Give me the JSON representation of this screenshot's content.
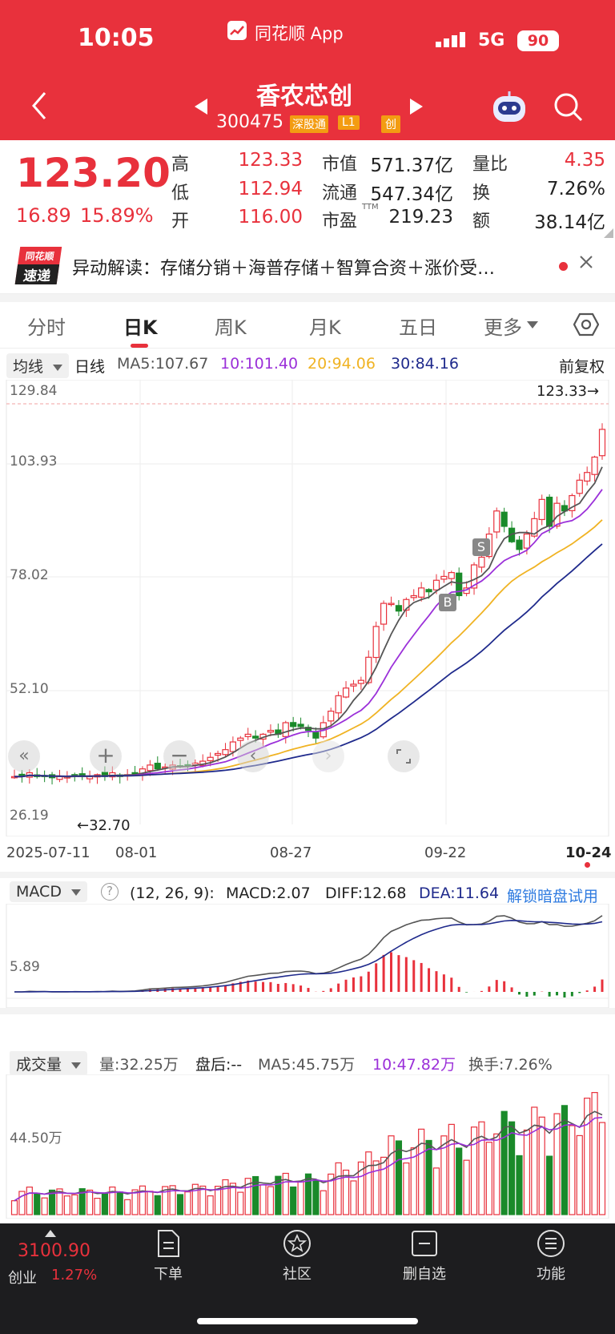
{
  "status_bar": {
    "time": "10:05",
    "app_name": "同花顺 App",
    "network": "5G",
    "battery": "90"
  },
  "header": {
    "stock_name": "香农芯创",
    "stock_code": "300475",
    "badges": [
      "深股通",
      "L1",
      "创"
    ]
  },
  "quote": {
    "price": "123.20",
    "change": "16.89",
    "change_pct": "15.89%",
    "high_label": "高",
    "high": "123.33",
    "low_label": "低",
    "low": "112.94",
    "open_label": "开",
    "open": "116.00",
    "mktcap_label": "市值",
    "mktcap": "571.37亿",
    "float_label": "流通",
    "float": "547.34亿",
    "pe_label": "市盈",
    "pe_sup": "TTM",
    "pe": "219.23",
    "volratio_label": "量比",
    "volratio": "4.35",
    "turnover_label": "换",
    "turnover": "7.26%",
    "amount_label": "额",
    "amount": "38.14亿"
  },
  "news": {
    "logo_top": "同花顺",
    "logo_bottom": "速递",
    "text": "异动解读：存储分销＋海普存储＋智算合资＋涨价受…"
  },
  "tabs": [
    "分时",
    "日K",
    "周K",
    "月K",
    "五日",
    "更多"
  ],
  "kline": {
    "indicator": "均线",
    "period": "日线",
    "ma5": "MA5:107.67",
    "ma10": "10:101.40",
    "ma20": "20:94.06",
    "ma30": "30:84.16",
    "adjust": "前复权",
    "ylabels": [
      "129.84",
      "103.93",
      "78.02",
      "52.10",
      "26.19"
    ],
    "high_marker": "123.33→",
    "low_marker": "←32.70",
    "marker_s": "S",
    "marker_b": "B",
    "dates": [
      "2025-07-11",
      "08-01",
      "08-27",
      "09-22",
      "10-24"
    ]
  },
  "macd": {
    "name": "MACD",
    "params": "(12, 26, 9):",
    "macd": "MACD:2.07",
    "diff": "DIFF:12.68",
    "dea": "DEA:11.64",
    "unlock": "解锁暗盘试用",
    "ylabel": "5.89"
  },
  "volume": {
    "name": "成交量",
    "vol": "量:32.25万",
    "after": "盘后:--",
    "ma5": "MA5:45.75万",
    "ma10": "10:47.82万",
    "turnover": "换手:7.26%",
    "ylabel": "44.50万"
  },
  "bottom": {
    "index_value": "3100.90",
    "index_name": "创业",
    "index_pct": "1.27%",
    "nav": [
      "下单",
      "社区",
      "删自选",
      "功能"
    ]
  },
  "colors": {
    "up": "#e8313c",
    "down": "#1a8a2a",
    "ma5": "#555555",
    "ma10": "#9b30d9",
    "ma20": "#f0b323",
    "ma30": "#1f2a8c"
  },
  "chart_data": {
    "type": "candlestick",
    "title": "香农芯创 日K",
    "x_range": [
      "2025-07-11",
      "10-24"
    ],
    "ylim": [
      26.19,
      129.84
    ],
    "ma_last": {
      "MA5": 107.67,
      "MA10": 101.4,
      "MA20": 94.06,
      "MA30": 84.16
    },
    "close_approx": [
      33,
      33,
      34,
      33,
      33,
      32.7,
      33,
      33,
      33.5,
      33,
      33,
      33.5,
      33,
      34,
      33,
      33.5,
      34,
      35,
      36,
      35,
      35.5,
      36,
      35.5,
      36,
      36.5,
      37,
      38,
      39,
      40,
      42,
      43,
      44,
      43,
      44,
      45,
      44,
      47,
      46,
      46,
      45,
      43,
      47,
      50,
      54,
      56,
      57,
      58,
      64,
      72,
      78,
      78,
      76,
      79,
      80,
      82,
      81,
      84,
      85,
      86,
      80,
      82,
      88,
      90,
      96,
      102,
      98,
      94,
      92,
      96,
      100,
      105,
      98,
      104,
      102,
      106,
      110,
      112,
      116,
      123.2
    ]
  }
}
